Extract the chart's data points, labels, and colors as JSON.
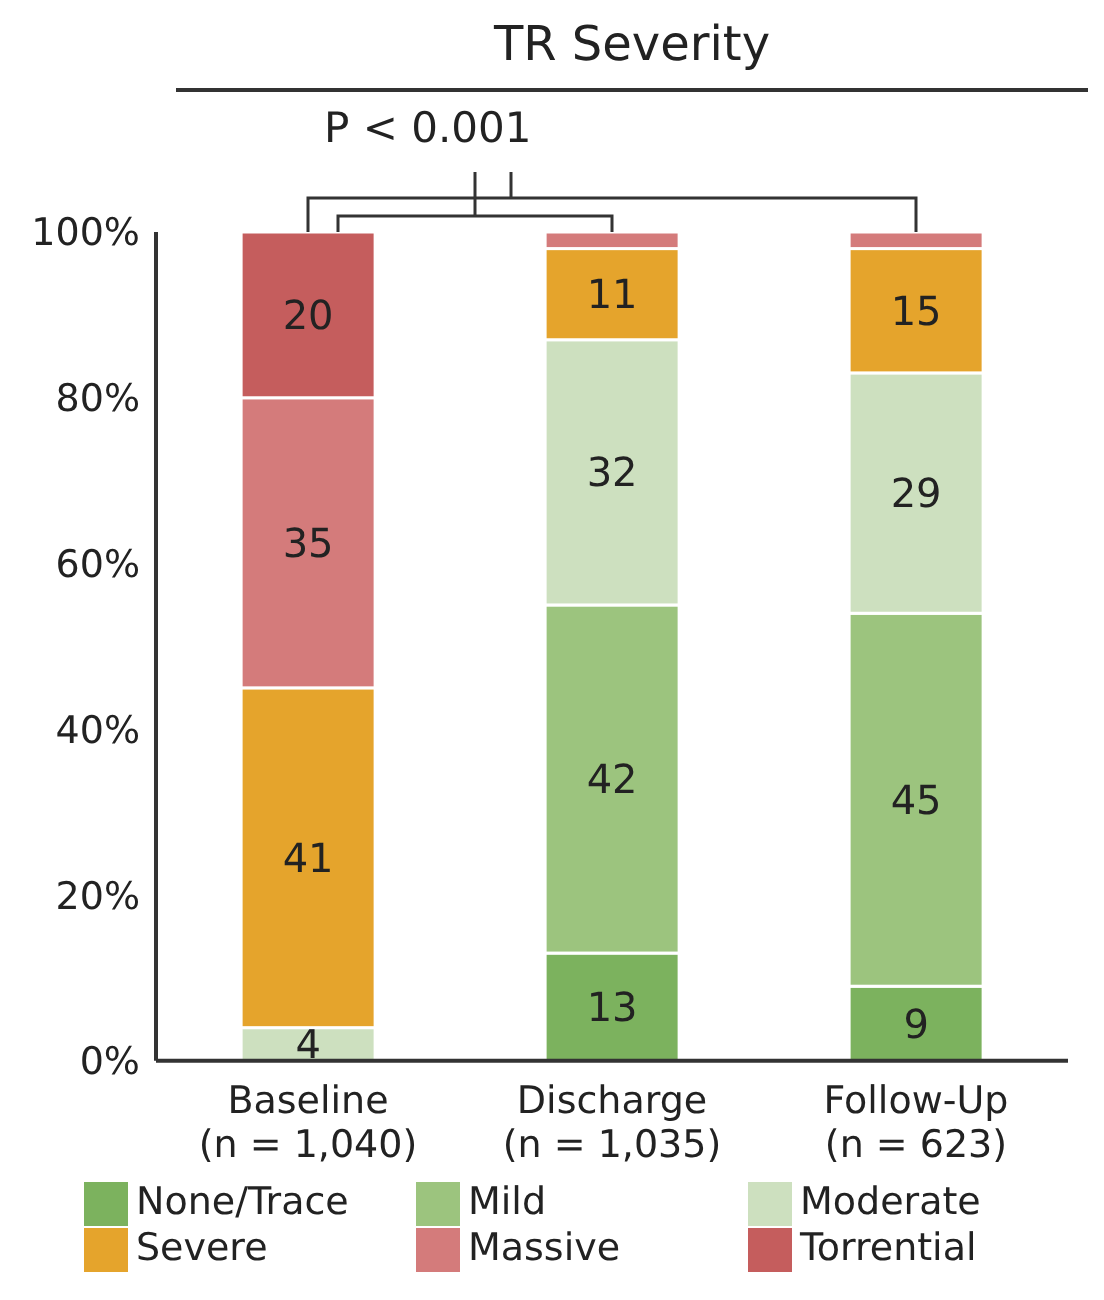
{
  "chart_data": {
    "type": "bar",
    "stacked": true,
    "title": "TR Severity",
    "categories": [
      "Baseline\n(n = 1,040)",
      "Discharge\n(n = 1,035)",
      "Follow-Up\n(n = 623)"
    ],
    "series": [
      {
        "name": "None/Trace",
        "color": "#7cb25e",
        "values": [
          0,
          13,
          9
        ],
        "value_labels": [
          null,
          "13",
          "9"
        ]
      },
      {
        "name": "Mild",
        "color": "#9cc47e",
        "values": [
          0,
          42,
          45
        ],
        "value_labels": [
          null,
          "42",
          "45"
        ]
      },
      {
        "name": "Moderate",
        "color": "#cde0bf",
        "values": [
          4,
          32,
          29
        ],
        "value_labels": [
          "4",
          "32",
          "29"
        ]
      },
      {
        "name": "Severe",
        "color": "#e5a42c",
        "values": [
          41,
          11,
          15
        ],
        "value_labels": [
          "41",
          "11",
          "15"
        ]
      },
      {
        "name": "Massive",
        "color": "#d47b7b",
        "values": [
          35,
          2,
          2
        ],
        "value_labels": [
          "35",
          null,
          null
        ]
      },
      {
        "name": "Torrential",
        "color": "#c55d5d",
        "values": [
          20,
          0,
          0
        ],
        "value_labels": [
          "20",
          null,
          null
        ]
      }
    ],
    "ylim": [
      0,
      100
    ],
    "yticks": [
      {
        "value": 0,
        "label": "0%"
      },
      {
        "value": 20,
        "label": "20%"
      },
      {
        "value": 40,
        "label": "40%"
      },
      {
        "value": 60,
        "label": "60%"
      },
      {
        "value": 80,
        "label": "80%"
      },
      {
        "value": 100,
        "label": "100%"
      }
    ],
    "grid": false,
    "legend": "bottom",
    "annotations": [
      "P < 0.001"
    ]
  }
}
